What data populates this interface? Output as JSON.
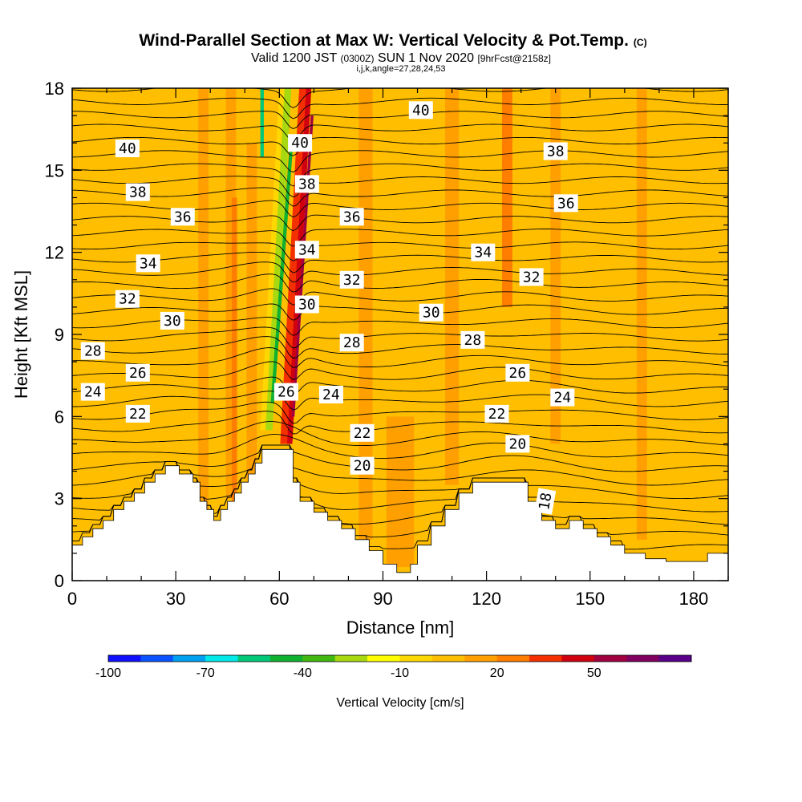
{
  "chart_data": {
    "type": "contour",
    "title": "Wind-Parallel Section at Max W: Vertical Velocity & Pot.Temp.",
    "copyright_mark": "(C)",
    "subtitle": {
      "valid_prefix": "Valid 1200 JST",
      "utc_time": "(0300Z)",
      "date": "SUN 1 Nov 2020",
      "forecast": "[9hrFcst@2158z]",
      "indices": "i,j,k,angle=27,28,24,53"
    },
    "xlabel": "Distance [nm]",
    "ylabel": "Height [Kft MSL]",
    "xlim": [
      0,
      190
    ],
    "ylim": [
      0,
      18
    ],
    "x_ticks": [
      0,
      30,
      60,
      90,
      120,
      150,
      180
    ],
    "y_ticks": [
      0,
      3,
      6,
      9,
      12,
      15,
      18
    ],
    "colorbar": {
      "label": "Vertical Velocity [cm/s]",
      "tick_labels": [
        -100,
        -70,
        -40,
        -10,
        20,
        50
      ],
      "bin_edges": [
        -100,
        -90,
        -80,
        -70,
        -60,
        -50,
        -40,
        -30,
        -20,
        -10,
        0,
        10,
        20,
        30,
        40,
        50,
        60,
        70
      ],
      "colors": [
        "#1010ff",
        "#0a52ff",
        "#00a0f0",
        "#00e8e8",
        "#00c878",
        "#10b030",
        "#40b810",
        "#a8d810",
        "#ffff00",
        "#ffd700",
        "#ffbf00",
        "#ffa000",
        "#ff7e00",
        "#f43000",
        "#d00010",
        "#a00040",
        "#800060",
        "#5a0088"
      ]
    },
    "background_velocity_class": 0,
    "terrain_profile": {
      "x": [
        0,
        3,
        3,
        6,
        6,
        9,
        9,
        12,
        12,
        15,
        15,
        18,
        18,
        21,
        21,
        24,
        24,
        27,
        27,
        31,
        31,
        35,
        35,
        37,
        37,
        39,
        39,
        41,
        41,
        43,
        43,
        45,
        45,
        47,
        47,
        49,
        49,
        51,
        51,
        53,
        53,
        55,
        55,
        57,
        57,
        64,
        64,
        66,
        66,
        70,
        70,
        74,
        74,
        78,
        78,
        82,
        82,
        86,
        86,
        90,
        90,
        94,
        94,
        96,
        96,
        98,
        98,
        100,
        100,
        104,
        104,
        108,
        108,
        112,
        112,
        116,
        116,
        120,
        120,
        124,
        124,
        128,
        128,
        132,
        132,
        136,
        136,
        140,
        140,
        144,
        144,
        148,
        148,
        152,
        152,
        156,
        156,
        160,
        160,
        166,
        166,
        172,
        172,
        178,
        178,
        184,
        184,
        190
      ],
      "height": [
        1.3,
        1.3,
        1.6,
        1.6,
        1.9,
        1.9,
        2.2,
        2.2,
        2.6,
        2.6,
        2.9,
        2.9,
        3.2,
        3.2,
        3.6,
        3.6,
        3.9,
        3.9,
        4.2,
        4.2,
        3.9,
        3.9,
        3.6,
        3.6,
        2.9,
        2.9,
        2.6,
        2.6,
        2.2,
        2.2,
        2.6,
        2.6,
        2.9,
        2.9,
        3.2,
        3.2,
        3.6,
        3.6,
        3.9,
        3.9,
        4.3,
        4.3,
        4.8,
        4.8,
        4.8,
        4.8,
        3.6,
        3.6,
        2.9,
        2.9,
        2.5,
        2.5,
        2.2,
        2.2,
        1.9,
        1.9,
        1.5,
        1.5,
        1.1,
        1.1,
        0.6,
        0.6,
        0.3,
        0.3,
        0.3,
        0.3,
        0.6,
        0.6,
        1.3,
        1.3,
        2.0,
        2.0,
        2.6,
        2.6,
        3.2,
        3.2,
        3.6,
        3.6,
        3.6,
        3.6,
        3.6,
        3.6,
        3.6,
        3.6,
        2.9,
        2.9,
        2.2,
        2.2,
        1.9,
        1.9,
        2.2,
        2.2,
        1.9,
        1.9,
        1.6,
        1.6,
        1.3,
        1.3,
        1.0,
        1.0,
        0.8,
        0.8,
        0.7,
        0.7,
        0.7,
        0.7,
        1.0,
        1.0
      ]
    },
    "velocity_features": [
      {
        "x": 38,
        "y0": 2.5,
        "y1": 18,
        "w": 3,
        "class": 1
      },
      {
        "x": 46,
        "y0": 3.0,
        "y1": 18,
        "w": 3,
        "class": 1
      },
      {
        "x": 47,
        "y0": 2.5,
        "y1": 14,
        "w": 1.5,
        "class": 2
      },
      {
        "x": 52,
        "y0": 3.2,
        "y1": 16,
        "w": 3,
        "class": 1
      },
      {
        "x": 62,
        "y0": 5.0,
        "y1": 18,
        "w": 3.5,
        "class": 3,
        "tilt": 5.5
      },
      {
        "x": 63,
        "y0": 5.0,
        "y1": 18,
        "w": 1.5,
        "class": 4,
        "tilt": 5.5
      },
      {
        "x": 64,
        "y0": 6.0,
        "y1": 17,
        "w": 0.8,
        "class": 5,
        "tilt": 5.5
      },
      {
        "x": 56,
        "y0": 5.5,
        "y1": 18,
        "w": 3,
        "class": -1,
        "tilt": 5.5
      },
      {
        "x": 57,
        "y0": 5.5,
        "y1": 18,
        "w": 2,
        "class": -3,
        "tilt": 5.5
      },
      {
        "x": 58,
        "y0": 6.5,
        "y1": 16,
        "w": 1,
        "class": -5,
        "tilt": 5.5
      },
      {
        "x": 55,
        "y0": 15.5,
        "y1": 18,
        "w": 1,
        "class": -6
      },
      {
        "x": 85,
        "y0": 1.5,
        "y1": 18,
        "w": 4,
        "class": 1
      },
      {
        "x": 110,
        "y0": 3.5,
        "y1": 18,
        "w": 4,
        "class": 1
      },
      {
        "x": 126,
        "y0": 10,
        "y1": 18,
        "w": 3,
        "class": 2
      },
      {
        "x": 140,
        "y0": 5,
        "y1": 18,
        "w": 3,
        "class": 1
      },
      {
        "x": 165,
        "y0": 1.5,
        "y1": 18,
        "w": 3,
        "class": 1
      },
      {
        "x": 95,
        "y0": 0.5,
        "y1": 6,
        "w": 8,
        "class": 1
      }
    ],
    "theta_contour_labels": [
      {
        "x": 16,
        "y": 15.8,
        "value": "40"
      },
      {
        "x": 101,
        "y": 17.2,
        "value": "40"
      },
      {
        "x": 66,
        "y": 16.0,
        "value": "40"
      },
      {
        "x": 19,
        "y": 14.2,
        "value": "38"
      },
      {
        "x": 68,
        "y": 14.5,
        "value": "38"
      },
      {
        "x": 140,
        "y": 15.7,
        "value": "38"
      },
      {
        "x": 32,
        "y": 13.3,
        "value": "36"
      },
      {
        "x": 81,
        "y": 13.3,
        "value": "36"
      },
      {
        "x": 143,
        "y": 13.8,
        "value": "36"
      },
      {
        "x": 22,
        "y": 11.6,
        "value": "34"
      },
      {
        "x": 68,
        "y": 12.1,
        "value": "34"
      },
      {
        "x": 119,
        "y": 12.0,
        "value": "34"
      },
      {
        "x": 16,
        "y": 10.3,
        "value": "32"
      },
      {
        "x": 81,
        "y": 11.0,
        "value": "32"
      },
      {
        "x": 133,
        "y": 11.1,
        "value": "32"
      },
      {
        "x": 29,
        "y": 9.5,
        "value": "30"
      },
      {
        "x": 68,
        "y": 10.1,
        "value": "30"
      },
      {
        "x": 104,
        "y": 9.8,
        "value": "30"
      },
      {
        "x": 6,
        "y": 8.4,
        "value": "28"
      },
      {
        "x": 81,
        "y": 8.7,
        "value": "28"
      },
      {
        "x": 116,
        "y": 8.8,
        "value": "28"
      },
      {
        "x": 19,
        "y": 7.6,
        "value": "26"
      },
      {
        "x": 62,
        "y": 6.9,
        "value": "26"
      },
      {
        "x": 129,
        "y": 7.6,
        "value": "26"
      },
      {
        "x": 6,
        "y": 6.9,
        "value": "24"
      },
      {
        "x": 75,
        "y": 6.8,
        "value": "24"
      },
      {
        "x": 142,
        "y": 6.7,
        "value": "24"
      },
      {
        "x": 19,
        "y": 6.1,
        "value": "22"
      },
      {
        "x": 84,
        "y": 5.4,
        "value": "22"
      },
      {
        "x": 123,
        "y": 6.1,
        "value": "22"
      },
      {
        "x": 84,
        "y": 4.2,
        "value": "20"
      },
      {
        "x": 129,
        "y": 5.0,
        "value": "20"
      },
      {
        "x": 137,
        "y": 2.9,
        "value": "18",
        "rotate": -80
      }
    ]
  }
}
